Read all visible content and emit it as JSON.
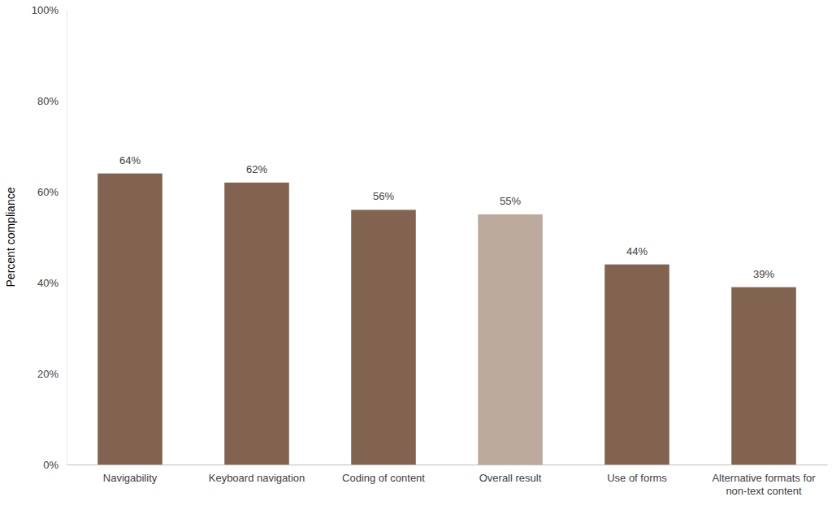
{
  "chart_data": {
    "type": "bar",
    "y_label": "Percent compliance",
    "categories": [
      "Navigability",
      "Keyboard navigation",
      "Coding of content",
      "Overall result",
      "Use of forms",
      "Alternative formats for non-text content"
    ],
    "values": [
      64,
      62,
      56,
      55,
      44,
      39
    ],
    "value_labels": [
      "64%",
      "62%",
      "56%",
      "55%",
      "44%",
      "39%"
    ],
    "colors": [
      "#82634f",
      "#82634f",
      "#82634f",
      "#bcab9d",
      "#82634f",
      "#82634f"
    ],
    "ylim": [
      0,
      100
    ],
    "yticks": [
      {
        "value": 0,
        "label": "0%"
      },
      {
        "value": 20,
        "label": "20%"
      },
      {
        "value": 40,
        "label": "40%"
      },
      {
        "value": 60,
        "label": "60%"
      },
      {
        "value": 80,
        "label": "80%"
      },
      {
        "value": 100,
        "label": "100%"
      }
    ],
    "grid": false,
    "data_labels": true
  }
}
